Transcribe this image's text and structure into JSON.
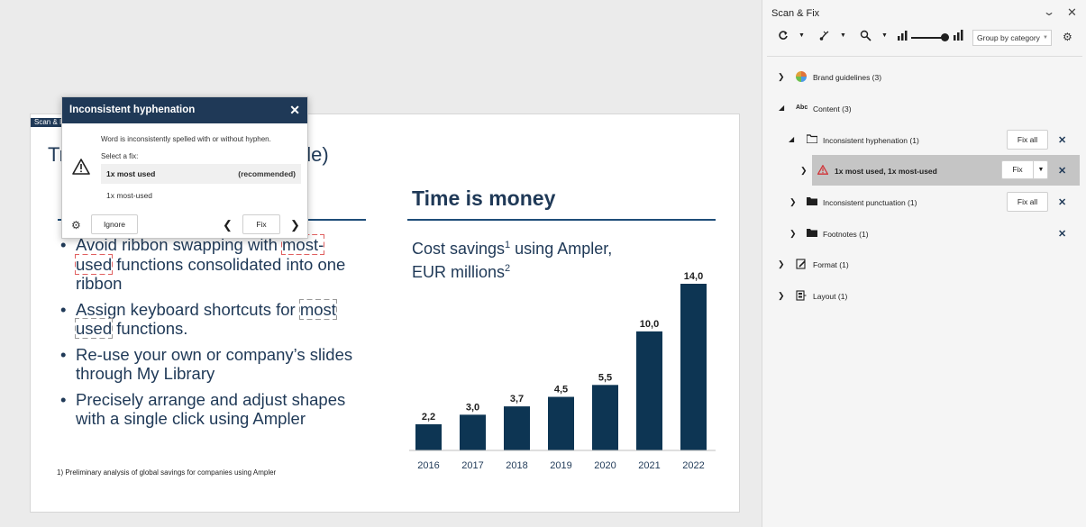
{
  "slide": {
    "tab_label": "Scan & I",
    "title_start": "Tr",
    "title_end": "ide)",
    "bullets": [
      {
        "pre": "Avoid ribbon swapping with",
        "mark": "most-used",
        "post": " functions consolidated into one ribbon"
      },
      {
        "pre": "Assign keyboard shortcuts for",
        "mark": "most used",
        "post": " functions."
      },
      {
        "pre": "Re-use your own or company’s slides through My Library",
        "mark": "",
        "post": ""
      },
      {
        "pre": "Precisely arrange and adjust shapes with a single click using Ampler",
        "mark": "",
        "post": ""
      }
    ],
    "footnote": "1) Preliminary analysis of global savings for companies using Ampler"
  },
  "chart": {
    "title": "Time is money",
    "subtitle_line1": "Cost savings",
    "subtitle_sup1": "1",
    "subtitle_line1_rest": " using Ampler,",
    "subtitle_line2": "EUR millions",
    "subtitle_sup2": "2",
    "bar_color": "#0d3553"
  },
  "chart_data": {
    "type": "bar",
    "categories": [
      "2016",
      "2017",
      "2018",
      "2019",
      "2020",
      "2021",
      "2022"
    ],
    "values": [
      2.2,
      3.0,
      3.7,
      4.5,
      5.5,
      10.0,
      14.0
    ],
    "value_labels": [
      "2,2",
      "3,0",
      "3,7",
      "4,5",
      "5,5",
      "10,0",
      "14,0"
    ],
    "title": "Time is money",
    "ylabel": "",
    "xlabel": "",
    "ylim": [
      0,
      14
    ]
  },
  "popup": {
    "title": "Inconsistent hyphenation",
    "close_glyph": "✕",
    "description": "Word is inconsistently spelled with or without hyphen.",
    "select_label": "Select a fix:",
    "option_recommended": "1x most used",
    "option_recommended_tag": "(recommended)",
    "option_alt": "1x most-used",
    "ignore_label": "Ignore",
    "fix_label": "Fix",
    "prev_glyph": "❮",
    "next_glyph": "❯",
    "gear_glyph": "⚙"
  },
  "panel": {
    "title": "Scan & Fix",
    "group_select_value": "Group by category",
    "rows": {
      "brand": {
        "label": "Brand guidelines (3)"
      },
      "content": {
        "label": "Content (3)"
      },
      "hyphen": {
        "label": "Inconsistent hyphenation (1)",
        "button": "Fix all"
      },
      "issue": {
        "label": "1x most used, 1x most-used",
        "button": "Fix"
      },
      "punct": {
        "label": "Inconsistent punctuation (1)",
        "button": "Fix all"
      },
      "footnotes": {
        "label": "Footnotes (1)"
      },
      "format": {
        "label": "Format (1)"
      },
      "layout": {
        "label": "Layout (1)"
      }
    },
    "accent": "#1f3957",
    "warning_color": "#d13438"
  }
}
